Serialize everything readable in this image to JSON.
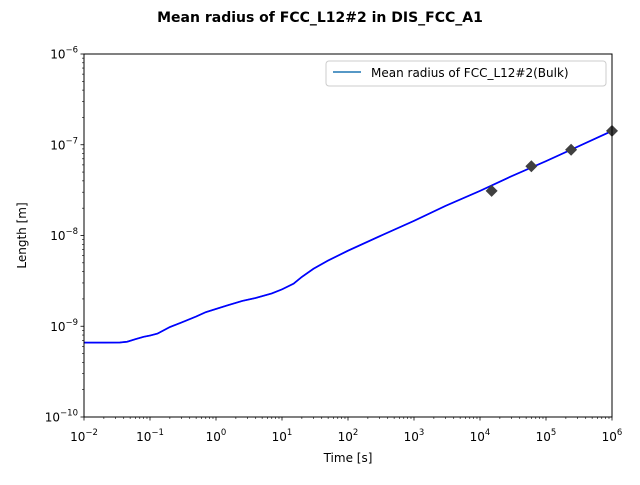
{
  "chart_data": {
    "type": "line",
    "title": "Mean radius of FCC_L12#2 in DIS_FCC_A1",
    "xlabel": "Time [s]",
    "ylabel": "Length [m]",
    "xscale": "log",
    "yscale": "log",
    "xlim": [
      0.01,
      1000000
    ],
    "ylim": [
      1e-10,
      1e-06
    ],
    "grid": false,
    "legend": {
      "placement": "top-right",
      "entries": [
        "Mean radius of FCC_L12#2(Bulk)"
      ]
    },
    "x_ticks": [
      {
        "base": "10",
        "exp": "−2",
        "value": 0.01
      },
      {
        "base": "10",
        "exp": "−1",
        "value": 0.1
      },
      {
        "base": "10",
        "exp": "0",
        "value": 1
      },
      {
        "base": "10",
        "exp": "1",
        "value": 10
      },
      {
        "base": "10",
        "exp": "2",
        "value": 100
      },
      {
        "base": "10",
        "exp": "3",
        "value": 1000
      },
      {
        "base": "10",
        "exp": "4",
        "value": 10000
      },
      {
        "base": "10",
        "exp": "5",
        "value": 100000
      },
      {
        "base": "10",
        "exp": "6",
        "value": 1000000
      }
    ],
    "y_ticks": [
      {
        "base": "10",
        "exp": "−10",
        "value": 1e-10
      },
      {
        "base": "10",
        "exp": "−9",
        "value": 1e-09
      },
      {
        "base": "10",
        "exp": "−8",
        "value": 1e-08
      },
      {
        "base": "10",
        "exp": "−7",
        "value": 1e-07
      },
      {
        "base": "10",
        "exp": "−6",
        "value": 1e-06
      }
    ],
    "series": [
      {
        "name": "Mean radius of FCC_L12#2(Bulk)",
        "color": "#1f77b4",
        "overlay_color": "#0000ff",
        "x": [
          0.01,
          0.02,
          0.035,
          0.045,
          0.06,
          0.08,
          0.1,
          0.13,
          0.2,
          0.3,
          0.5,
          0.7,
          1,
          1.5,
          2.5,
          4,
          7,
          10,
          15,
          20,
          30,
          50,
          100,
          300,
          1000,
          3000,
          10000,
          30000,
          100000,
          300000,
          1000000
        ],
        "y": [
          6.6e-10,
          6.6e-10,
          6.62e-10,
          6.75e-10,
          7.2e-10,
          7.65e-10,
          7.9e-10,
          8.3e-10,
          9.8e-10,
          1.1e-09,
          1.28e-09,
          1.43e-09,
          1.55e-09,
          1.7e-09,
          1.9e-09,
          2.05e-09,
          2.3e-09,
          2.55e-09,
          2.95e-09,
          3.5e-09,
          4.3e-09,
          5.3e-09,
          6.8e-09,
          9.8e-09,
          1.45e-08,
          2.12e-08,
          3.1e-08,
          4.5e-08,
          6.6e-08,
          9.5e-08,
          1.42e-07
        ]
      },
      {
        "type": "scatter",
        "marker": "diamond",
        "color": "#404040",
        "x": [
          15000,
          60000,
          240000,
          1000000
        ],
        "y": [
          3.1e-08,
          5.8e-08,
          8.8e-08,
          1.42e-07
        ]
      }
    ]
  }
}
